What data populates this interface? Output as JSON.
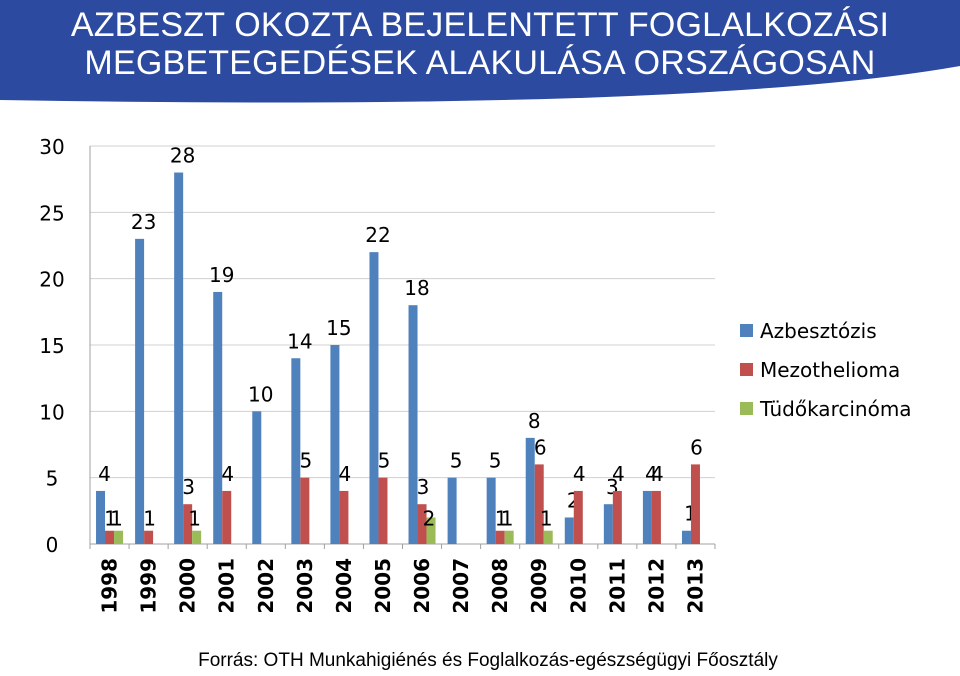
{
  "header": {
    "title_line1": "AZBESZT OKOZTA BEJELENTETT FOGLALKOZÁSI",
    "title_line2": "MEGBETEGEDÉSEK ALAKULÁSA ORSZÁGOSAN",
    "banner_color": "#2b4aa0"
  },
  "footer": {
    "source": "Forrás: OTH Munkahigiénés és Foglalkozás-egészségügyi Főosztály"
  },
  "chart_data": {
    "type": "bar",
    "categories": [
      "1998",
      "1999",
      "2000",
      "2001",
      "2002",
      "2003",
      "2004",
      "2005",
      "2006",
      "2007",
      "2008",
      "2009",
      "2010",
      "2011",
      "2012",
      "2013"
    ],
    "series": [
      {
        "name": "Azbesztózis",
        "color": "#4f81bd",
        "values": [
          4,
          23,
          28,
          19,
          10,
          14,
          15,
          22,
          18,
          5,
          5,
          8,
          2,
          3,
          4,
          1
        ]
      },
      {
        "name": "Mezothelioma",
        "color": "#c0504d",
        "values": [
          1,
          1,
          3,
          4,
          null,
          5,
          4,
          5,
          3,
          null,
          1,
          6,
          4,
          4,
          4,
          6
        ]
      },
      {
        "name": "Tüdőkarcinóma",
        "color": "#9bbb59",
        "values": [
          1,
          null,
          1,
          null,
          null,
          null,
          null,
          null,
          2,
          null,
          1,
          1,
          null,
          null,
          null,
          null
        ]
      }
    ],
    "yticks": [
      0,
      5,
      10,
      15,
      20,
      25,
      30
    ],
    "ylim": [
      0,
      30
    ],
    "grid": true,
    "legend_position": "right",
    "xlabel": "",
    "ylabel": "",
    "title": ""
  }
}
